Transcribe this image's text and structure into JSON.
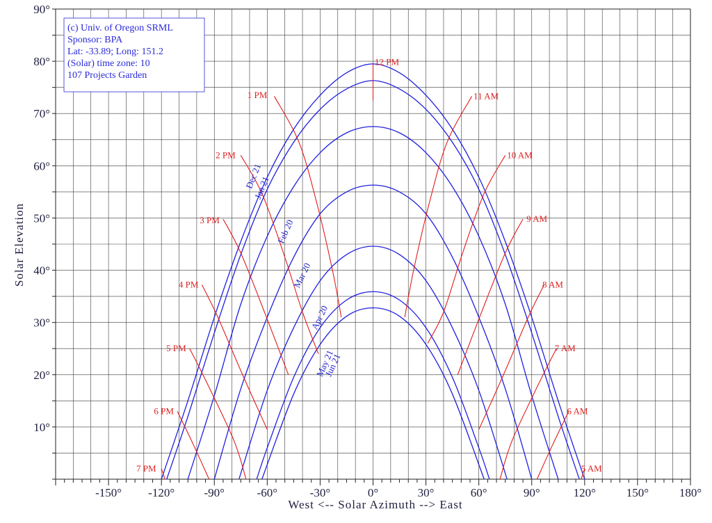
{
  "chart_data": {
    "type": "line",
    "title": "",
    "xlabel": "West <-- Solar Azimuth --> East",
    "ylabel": "Solar Elevation",
    "xlim": [
      -180,
      180
    ],
    "ylim": [
      0,
      90
    ],
    "grid": true,
    "x_tick_labels": [
      {
        "value": -150,
        "label": "-150°"
      },
      {
        "value": -120,
        "label": "-120°"
      },
      {
        "value": -90,
        "label": "-90°"
      },
      {
        "value": -60,
        "label": "-60°"
      },
      {
        "value": -30,
        "label": "-30°"
      },
      {
        "value": 0,
        "label": "0°"
      },
      {
        "value": 30,
        "label": "30°"
      },
      {
        "value": 60,
        "label": "60°"
      },
      {
        "value": 90,
        "label": "90°"
      },
      {
        "value": 120,
        "label": "120°"
      },
      {
        "value": 150,
        "label": "150°"
      },
      {
        "value": 180,
        "label": "180°"
      }
    ],
    "y_tick_labels": [
      {
        "value": 10,
        "label": "10°"
      },
      {
        "value": 20,
        "label": "20°"
      },
      {
        "value": 30,
        "label": "30°"
      },
      {
        "value": 40,
        "label": "40°"
      },
      {
        "value": 50,
        "label": "50°"
      },
      {
        "value": 60,
        "label": "60°"
      },
      {
        "value": 70,
        "label": "70°"
      },
      {
        "value": 80,
        "label": "80°"
      },
      {
        "value": 90,
        "label": "90°"
      }
    ],
    "info_box": [
      "(c) Univ. of Oregon SRML",
      "Sponsor: BPA",
      "Lat: -33.89; Long: 151.2",
      "(Solar) time zone: 10",
      "107 Projects Garden"
    ],
    "date_series": [
      {
        "name": "Dec 21",
        "peak": 79.5,
        "points": [
          [
            -120,
            0
          ],
          [
            -105,
            15
          ],
          [
            -90,
            31
          ],
          [
            -75,
            45.5
          ],
          [
            -60,
            57.8
          ],
          [
            -45,
            67
          ],
          [
            -30,
            73.5
          ],
          [
            -15,
            77.8
          ],
          [
            0,
            79.5
          ],
          [
            15,
            77.8
          ],
          [
            30,
            73.5
          ],
          [
            45,
            67
          ],
          [
            60,
            57.8
          ],
          [
            75,
            45.5
          ],
          [
            90,
            31
          ],
          [
            105,
            15
          ],
          [
            120,
            0
          ]
        ]
      },
      {
        "name": "Jan 21",
        "peak": 76.3,
        "points": [
          [
            -117,
            0
          ],
          [
            -105,
            12
          ],
          [
            -90,
            28
          ],
          [
            -75,
            43
          ],
          [
            -60,
            55.5
          ],
          [
            -45,
            64.5
          ],
          [
            -30,
            70.8
          ],
          [
            -15,
            74.7
          ],
          [
            0,
            76.3
          ],
          [
            15,
            74.7
          ],
          [
            30,
            70.8
          ],
          [
            45,
            64.5
          ],
          [
            60,
            55.5
          ],
          [
            75,
            43
          ],
          [
            90,
            28
          ],
          [
            105,
            12
          ],
          [
            117,
            0
          ]
        ]
      },
      {
        "name": "Feb 20",
        "peak": 67.5,
        "points": [
          [
            -105,
            0
          ],
          [
            -90,
            16
          ],
          [
            -75,
            33.5
          ],
          [
            -60,
            46.5
          ],
          [
            -45,
            56
          ],
          [
            -30,
            62.5
          ],
          [
            -15,
            66.3
          ],
          [
            0,
            67.5
          ],
          [
            15,
            66.3
          ],
          [
            30,
            62.5
          ],
          [
            45,
            56
          ],
          [
            60,
            46.5
          ],
          [
            75,
            33.5
          ],
          [
            90,
            16
          ],
          [
            105,
            0
          ]
        ]
      },
      {
        "name": "Mar 20",
        "peak": 56.3,
        "points": [
          [
            -90,
            0
          ],
          [
            -75,
            17.3
          ],
          [
            -60,
            31
          ],
          [
            -45,
            42.5
          ],
          [
            -30,
            50.8
          ],
          [
            -15,
            55
          ],
          [
            0,
            56.3
          ],
          [
            15,
            55
          ],
          [
            30,
            50.8
          ],
          [
            45,
            42.5
          ],
          [
            60,
            31
          ],
          [
            75,
            17.3
          ],
          [
            90,
            0
          ]
        ]
      },
      {
        "name": "Apr 20",
        "peak": 44.6,
        "points": [
          [
            -76,
            0
          ],
          [
            -60,
            17
          ],
          [
            -45,
            29
          ],
          [
            -30,
            38
          ],
          [
            -15,
            43
          ],
          [
            0,
            44.6
          ],
          [
            15,
            43
          ],
          [
            30,
            38
          ],
          [
            45,
            29
          ],
          [
            60,
            17
          ],
          [
            76,
            0
          ]
        ]
      },
      {
        "name": "May 21",
        "peak": 35.9,
        "points": [
          [
            -66,
            0
          ],
          [
            -60,
            6
          ],
          [
            -45,
            19.5
          ],
          [
            -30,
            29
          ],
          [
            -15,
            34.3
          ],
          [
            0,
            35.9
          ],
          [
            15,
            34.3
          ],
          [
            30,
            29
          ],
          [
            45,
            19.5
          ],
          [
            60,
            6
          ],
          [
            66,
            0
          ]
        ]
      },
      {
        "name": "Jun 21",
        "peak": 32.8,
        "points": [
          [
            -63,
            0
          ],
          [
            -45,
            16.3
          ],
          [
            -30,
            25.8
          ],
          [
            -15,
            31.2
          ],
          [
            0,
            32.8
          ],
          [
            15,
            31.2
          ],
          [
            30,
            25.8
          ],
          [
            45,
            16.3
          ],
          [
            63,
            0
          ]
        ]
      }
    ],
    "date_labels": [
      {
        "text": "Dec 21",
        "x": -69,
        "y": 55.5,
        "angle": -68
      },
      {
        "text": "Jan 21",
        "x": -64,
        "y": 53.5,
        "angle": -68
      },
      {
        "text": "Feb 20",
        "x": -51,
        "y": 45,
        "angle": -66
      },
      {
        "text": "Mar 20",
        "x": -42,
        "y": 36.5,
        "angle": -64
      },
      {
        "text": "Apr 20",
        "x": -32,
        "y": 28.5,
        "angle": -64
      },
      {
        "text": "May 21",
        "x": -29,
        "y": 19.5,
        "angle": -66
      },
      {
        "text": "Jun 21",
        "x": -24,
        "y": 19.5,
        "angle": -66
      }
    ],
    "hour_series": [
      {
        "name": "12 PM",
        "points": [
          [
            0,
            72.5
          ],
          [
            0,
            79.5
          ]
        ]
      },
      {
        "name": "1 PM",
        "points": [
          [
            -56,
            73.3
          ],
          [
            -42,
            64.5
          ],
          [
            -32,
            53
          ],
          [
            -23,
            40
          ],
          [
            -18,
            31
          ]
        ]
      },
      {
        "name": "2 PM",
        "points": [
          [
            -75,
            62
          ],
          [
            -63,
            54.7
          ],
          [
            -51,
            43.5
          ],
          [
            -40,
            32
          ],
          [
            -31,
            24
          ]
        ]
      },
      {
        "name": "3 PM",
        "points": [
          [
            -85,
            49.8
          ],
          [
            -75,
            43.3
          ],
          [
            -61,
            31.5
          ],
          [
            -48,
            20
          ]
        ]
      },
      {
        "name": "4 PM",
        "points": [
          [
            -97,
            37.2
          ],
          [
            -88,
            31
          ],
          [
            -74,
            20
          ],
          [
            -60,
            9.5
          ]
        ]
      },
      {
        "name": "5 PM",
        "points": [
          [
            -104,
            25
          ],
          [
            -95,
            19
          ],
          [
            -79,
            7.5
          ],
          [
            -72,
            0
          ]
        ]
      },
      {
        "name": "6 PM",
        "points": [
          [
            -111,
            13
          ],
          [
            -102,
            6.7
          ],
          [
            -93,
            0
          ]
        ]
      },
      {
        "name": "7 PM",
        "points": [
          [
            -120,
            2
          ],
          [
            -118,
            0
          ]
        ]
      },
      {
        "name": "11 AM",
        "points": [
          [
            56,
            73.3
          ],
          [
            42,
            64.5
          ],
          [
            32,
            53
          ],
          [
            23,
            40
          ],
          [
            18,
            31
          ]
        ]
      },
      {
        "name": "10 AM",
        "points": [
          [
            75,
            62
          ],
          [
            63,
            54.7
          ],
          [
            51,
            43.5
          ],
          [
            40,
            32
          ],
          [
            31,
            26
          ]
        ]
      },
      {
        "name": "9 AM",
        "points": [
          [
            85,
            49.8
          ],
          [
            75,
            43.3
          ],
          [
            61,
            31.5
          ],
          [
            48,
            20
          ]
        ]
      },
      {
        "name": "8 AM",
        "points": [
          [
            97,
            37.2
          ],
          [
            88,
            31
          ],
          [
            74,
            20
          ],
          [
            60,
            9.5
          ]
        ]
      },
      {
        "name": "7 AM",
        "points": [
          [
            104,
            25
          ],
          [
            95,
            19
          ],
          [
            79,
            7.5
          ],
          [
            72,
            0
          ]
        ]
      },
      {
        "name": "6 AM",
        "points": [
          [
            111,
            13
          ],
          [
            102,
            6.7
          ],
          [
            93,
            0
          ]
        ]
      },
      {
        "name": "5 AM",
        "points": [
          [
            120,
            2
          ],
          [
            118,
            0
          ]
        ]
      }
    ],
    "hour_labels": [
      {
        "text": "12 PM",
        "x": 1,
        "y": 79.8,
        "anchor": "start"
      },
      {
        "text": "1 PM",
        "x": -60,
        "y": 73.5,
        "anchor": "end"
      },
      {
        "text": "2 PM",
        "x": -78,
        "y": 62,
        "anchor": "end"
      },
      {
        "text": "3 PM",
        "x": -87,
        "y": 49.5,
        "anchor": "end"
      },
      {
        "text": "4 PM",
        "x": -99,
        "y": 37.2,
        "anchor": "end"
      },
      {
        "text": "5 PM",
        "x": -106,
        "y": 25,
        "anchor": "end"
      },
      {
        "text": "6 PM",
        "x": -113,
        "y": 13,
        "anchor": "end"
      },
      {
        "text": "7 PM",
        "x": -123,
        "y": 2,
        "anchor": "end"
      },
      {
        "text": "11 AM",
        "x": 57,
        "y": 73.3,
        "anchor": "start"
      },
      {
        "text": "10 AM",
        "x": 76,
        "y": 62,
        "anchor": "start"
      },
      {
        "text": "9 AM",
        "x": 87,
        "y": 49.8,
        "anchor": "start"
      },
      {
        "text": "8 AM",
        "x": 96,
        "y": 37.2,
        "anchor": "start"
      },
      {
        "text": "7 AM",
        "x": 103,
        "y": 25,
        "anchor": "start"
      },
      {
        "text": "6 AM",
        "x": 110,
        "y": 13,
        "anchor": "start"
      },
      {
        "text": "5 AM",
        "x": 118,
        "y": 2,
        "anchor": "start"
      }
    ],
    "colors": {
      "date_line": "#1f1fe0",
      "hour_line": "#e01c1c",
      "grid": "#3a3a3a",
      "axis_text": "#202040",
      "info_text": "#2a2ad8"
    }
  }
}
